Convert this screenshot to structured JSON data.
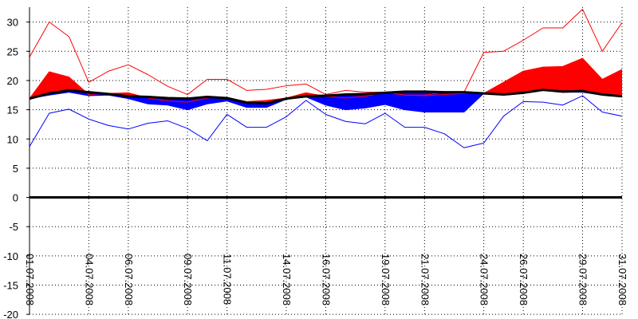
{
  "chart_data": {
    "type": "line",
    "title": "",
    "xlabel": "",
    "ylabel": "",
    "ylim": [
      -20,
      32
    ],
    "yticks": [
      30,
      25,
      20,
      15,
      10,
      5,
      0,
      -5,
      -10,
      -15,
      -20
    ],
    "grid": true,
    "legend": "none",
    "x_tick_labels": [
      {
        "day": 1,
        "label": "01.07.2008"
      },
      {
        "day": 4,
        "label": "04.07.2008"
      },
      {
        "day": 6,
        "label": "06.07.2008"
      },
      {
        "day": 9,
        "label": "09.07.2008"
      },
      {
        "day": 11,
        "label": "11.07.2008"
      },
      {
        "day": 14,
        "label": "14.07.2008"
      },
      {
        "day": 16,
        "label": "16.07.2008"
      },
      {
        "day": 19,
        "label": "19.07.2008"
      },
      {
        "day": 21,
        "label": "21.07.2008"
      },
      {
        "day": 24,
        "label": "24.07.2008"
      },
      {
        "day": 26,
        "label": "26.07.2008"
      },
      {
        "day": 29,
        "label": "29.07.2008"
      },
      {
        "day": 31,
        "label": "31.07.2008"
      }
    ],
    "days": [
      1,
      2,
      3,
      4,
      5,
      6,
      7,
      8,
      9,
      10,
      11,
      12,
      13,
      14,
      15,
      16,
      17,
      18,
      19,
      20,
      21,
      22,
      23,
      24,
      25,
      26,
      27,
      28,
      29,
      30,
      31
    ],
    "series": [
      {
        "color": "#ff0000",
        "values": [
          24.0,
          30.0,
          27.5,
          19.7,
          21.6,
          22.7,
          21.0,
          19.0,
          17.6,
          20.2,
          20.2,
          18.3,
          18.5,
          19.1,
          19.4,
          17.6,
          18.3,
          18.0,
          18.0,
          17.5,
          17.5,
          18.0,
          18.0,
          24.8,
          25.0,
          26.9,
          29.0,
          29.0,
          32.2,
          25.0,
          29.9
        ]
      },
      {
        "color": "#ff0000",
        "values": [
          16.9,
          21.5,
          20.6,
          17.6,
          17.8,
          17.9,
          17.0,
          16.5,
          16.3,
          17.0,
          17.1,
          16.4,
          16.6,
          17.0,
          17.9,
          17.3,
          17.0,
          17.3,
          18.0,
          17.5,
          17.4,
          17.6,
          17.8,
          17.8,
          19.7,
          21.6,
          22.3,
          22.4,
          23.8,
          20.2,
          21.9
        ]
      },
      {
        "color": "#0000ff",
        "values": [
          16.9,
          17.5,
          18.0,
          17.4,
          17.5,
          16.9,
          16.0,
          15.8,
          15.0,
          16.0,
          16.5,
          15.4,
          15.4,
          16.8,
          17.2,
          15.8,
          15.0,
          15.3,
          15.9,
          15.0,
          14.6,
          14.6,
          14.6,
          17.8,
          17.5,
          17.8,
          18.3,
          18.0,
          18.0,
          17.5,
          17.3
        ]
      },
      {
        "color": "#0000ff",
        "values": [
          8.7,
          14.4,
          15.1,
          13.4,
          12.3,
          11.7,
          12.7,
          13.1,
          11.8,
          9.7,
          14.2,
          12.0,
          12.0,
          13.8,
          16.6,
          14.2,
          13.0,
          12.6,
          14.4,
          12.0,
          12.0,
          10.9,
          8.5,
          9.3,
          13.9,
          16.4,
          16.3,
          15.8,
          17.4,
          14.6,
          13.9
        ]
      },
      {
        "color": "#000000",
        "values": [
          16.9,
          17.8,
          18.3,
          18.0,
          17.7,
          17.3,
          17.2,
          17.0,
          16.9,
          17.2,
          17.0,
          16.2,
          16.1,
          16.9,
          17.3,
          17.4,
          17.6,
          17.7,
          17.9,
          18.1,
          18.1,
          18.0,
          18.0,
          17.8,
          17.6,
          17.9,
          18.4,
          18.1,
          18.2,
          17.6,
          17.3
        ]
      }
    ],
    "fills": {
      "above": "#ff0000",
      "below": "#0000ff"
    },
    "zero_line": true
  }
}
